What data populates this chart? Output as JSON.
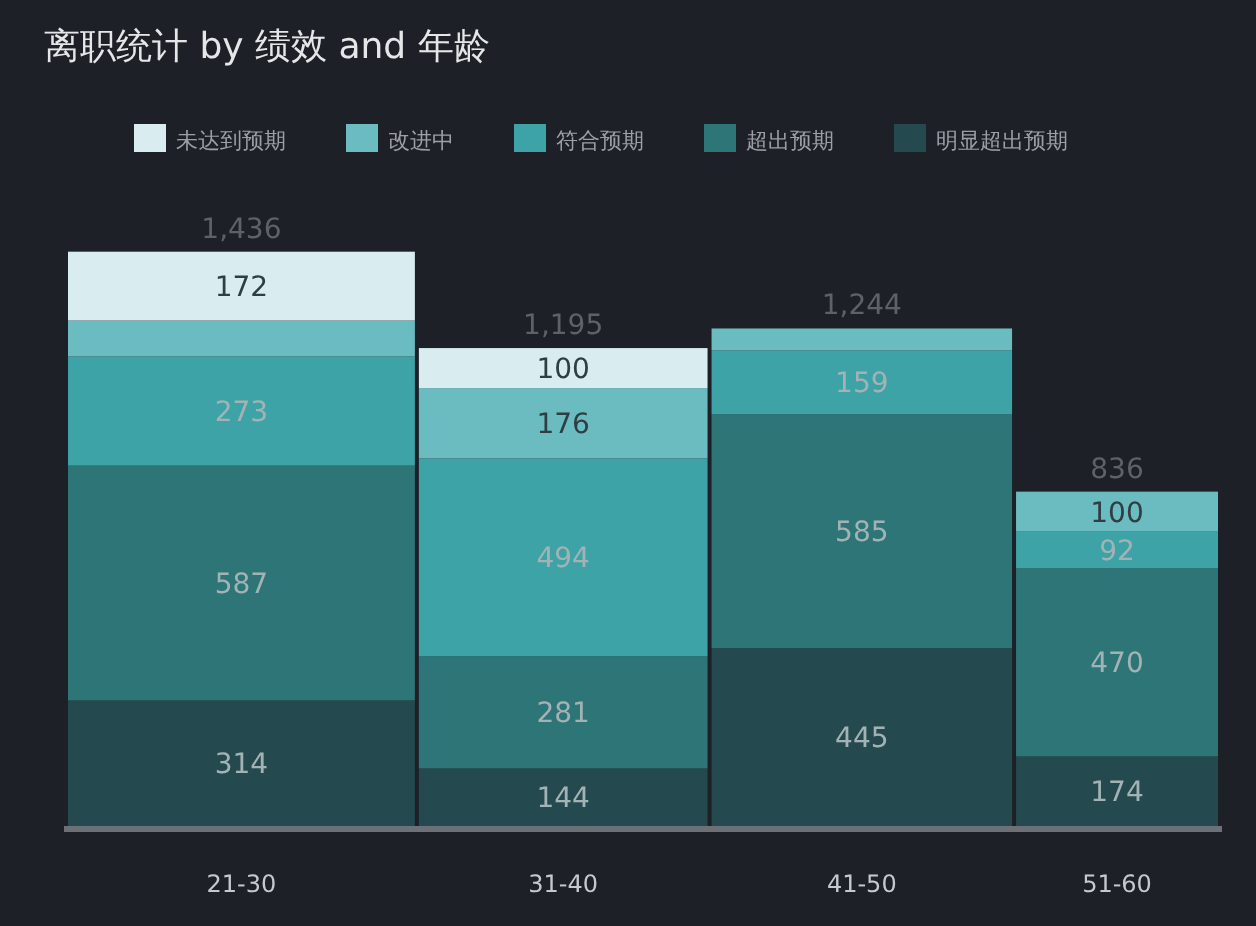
{
  "chart_data": {
    "type": "bar",
    "title": "离职统计  by 绩效 and 年龄",
    "stacked": true,
    "legend": "top",
    "categories": [
      "21-30",
      "31-40",
      "41-50",
      "51-60"
    ],
    "series": [
      {
        "name": "明显超出预期",
        "color": "#244a4f",
        "values": [
          314,
          144,
          445,
          174
        ],
        "value_labels": [
          "314",
          "144",
          "445",
          "174"
        ]
      },
      {
        "name": "超出预期",
        "color": "#2e7578",
        "values": [
          587,
          281,
          585,
          470
        ],
        "value_labels": [
          "587",
          "281",
          "585",
          "470"
        ]
      },
      {
        "name": "符合预期",
        "color": "#3ea3a6",
        "values": [
          273,
          494,
          159,
          92
        ],
        "value_labels": [
          "273",
          "494",
          "159",
          "92"
        ]
      },
      {
        "name": "改进中",
        "color": "#6bbcc0",
        "values": [
          90,
          176,
          55,
          100
        ],
        "value_labels": [
          null,
          "176",
          null,
          "100"
        ]
      },
      {
        "name": "未达到预期",
        "color": "#d9edf0",
        "values": [
          172,
          100,
          null,
          null
        ],
        "value_labels": [
          "172",
          "100",
          null,
          null
        ]
      }
    ],
    "totals": [
      "1,436",
      "1,195",
      "1,244",
      "836"
    ]
  }
}
